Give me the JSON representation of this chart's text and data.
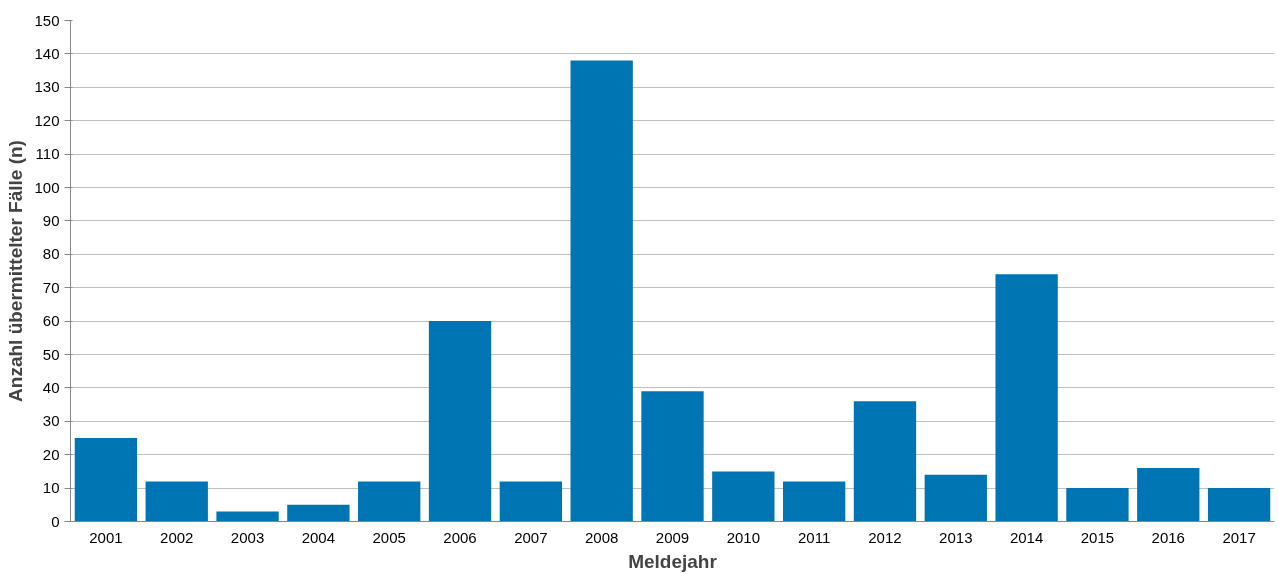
{
  "chart_data": {
    "type": "bar",
    "xlabel": "Meldejahr",
    "ylabel": "Anzahl übermittelter Fälle (n)",
    "categories": [
      "2001",
      "2002",
      "2003",
      "2004",
      "2005",
      "2006",
      "2007",
      "2008",
      "2009",
      "2010",
      "2011",
      "2012",
      "2013",
      "2014",
      "2015",
      "2016",
      "2017"
    ],
    "values": [
      25,
      12,
      3,
      5,
      12,
      60,
      12,
      138,
      39,
      15,
      12,
      36,
      14,
      74,
      10,
      16,
      10
    ],
    "color": "#0075b4",
    "ylim": [
      0,
      150
    ],
    "yticks": [
      0,
      10,
      20,
      30,
      40,
      50,
      60,
      70,
      80,
      90,
      100,
      110,
      120,
      130,
      140,
      150
    ],
    "grid": "y"
  }
}
